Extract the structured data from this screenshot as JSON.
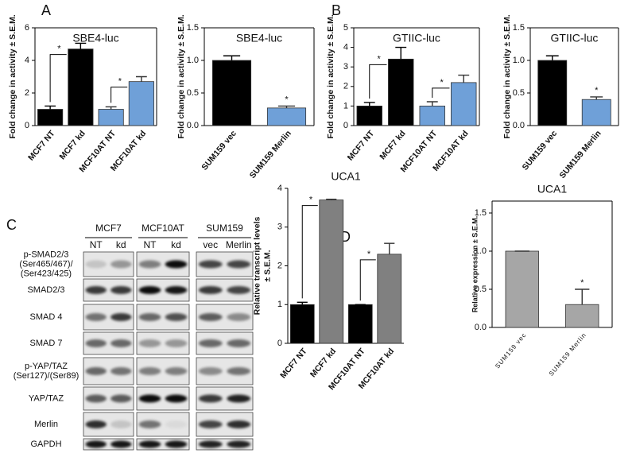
{
  "panel_labels": [
    "A",
    "B",
    "C",
    "D"
  ],
  "chart_data": [
    {
      "type": "bar",
      "title": "SBE4-luc",
      "y_label": [
        "Fold change in activity ± S.E.M."
      ],
      "categories": [
        "MCF7 NT",
        "MCF7 kd",
        "MCF10AT NT",
        "MCF10AT kd"
      ],
      "values": [
        1.0,
        4.7,
        1.0,
        2.7
      ],
      "errors": [
        0.2,
        0.35,
        0.15,
        0.3
      ],
      "colors": [
        "#000000",
        "#000000",
        "#6fa0d8",
        "#6fa0d8"
      ],
      "ylim": [
        0,
        6
      ],
      "yticks": [
        0,
        2,
        4,
        6
      ],
      "significance": [
        "*",
        "*"
      ]
    },
    {
      "type": "bar",
      "title": "SBE4-luc",
      "y_label": [
        "Fold change in activity ± S.E.M."
      ],
      "categories": [
        "SUM159 vec",
        "SUM159 Merlin"
      ],
      "values": [
        1.0,
        0.27
      ],
      "errors": [
        0.07,
        0.03
      ],
      "colors": [
        "#000000",
        "#6fa0d8"
      ],
      "ylim": [
        0,
        1.5
      ],
      "yticks": [
        {
          "value": 0,
          "label": "0.0"
        },
        {
          "value": 0.5,
          "label": "0.5"
        },
        {
          "value": 1,
          "label": "1.0"
        },
        {
          "value": 1.5,
          "label": "1.5"
        }
      ],
      "significance": [
        "*"
      ]
    },
    {
      "type": "bar",
      "title": "GTIIC-luc",
      "y_label": [
        "Fold change in activity ± S.E.M."
      ],
      "categories": [
        "MCF7 NT",
        "MCF7 kd",
        "MCF10AT NT",
        "MCF10AT kd"
      ],
      "values": [
        1.0,
        3.4,
        1.0,
        2.2
      ],
      "errors": [
        0.18,
        0.6,
        0.22,
        0.38
      ],
      "colors": [
        "#000000",
        "#000000",
        "#6fa0d8",
        "#6fa0d8"
      ],
      "ylim": [
        0,
        5
      ],
      "yticks": [
        0,
        1,
        2,
        3,
        4,
        5
      ],
      "significance": [
        "*",
        "*"
      ]
    },
    {
      "type": "bar",
      "title": "GTIIC-luc",
      "y_label": [
        "Fold change in activity ± S.E.M."
      ],
      "categories": [
        "SUM159 vec",
        "SUM159 Merlin"
      ],
      "values": [
        1.0,
        0.4
      ],
      "errors": [
        0.07,
        0.04
      ],
      "colors": [
        "#000000",
        "#6fa0d8"
      ],
      "ylim": [
        0,
        1.5
      ],
      "yticks": [
        {
          "value": 0,
          "label": "0.0"
        },
        {
          "value": 0.5,
          "label": "0.5"
        },
        {
          "value": 1,
          "label": "1.0"
        },
        {
          "value": 1.5,
          "label": "1.5"
        }
      ],
      "significance": [
        "*"
      ]
    },
    {
      "type": "bar",
      "title": "UCA1",
      "y_label": [
        "Relative transcript levels",
        "± S.E.M."
      ],
      "categories": [
        "MCF7 NT",
        "MCF7 kd",
        "MCF10AT NT",
        "MCF10AT kd"
      ],
      "values": [
        1.0,
        3.7,
        1.0,
        2.3
      ],
      "errors": [
        0.06,
        0.02,
        0,
        0.28
      ],
      "colors": [
        "#000000",
        "#808080",
        "#000000",
        "#808080"
      ],
      "ylim": [
        0,
        4
      ],
      "yticks": [
        0,
        1,
        2,
        3,
        4
      ],
      "significance": [
        "*",
        "*"
      ]
    },
    {
      "type": "bar",
      "title": "UCA1",
      "y_label": [
        "Relative expression ± S.E.M."
      ],
      "categories": [
        "SUM159 vec",
        "SUM159 Merlin"
      ],
      "values": [
        1.0,
        0.3
      ],
      "errors": [
        0,
        0.2
      ],
      "colors": [
        "#a6a6a6",
        "#a6a6a6"
      ],
      "ylim": [
        0,
        1.5
      ],
      "yticks": [
        {
          "value": 0,
          "label": "0.0"
        },
        {
          "value": 0.5,
          "label": "0.5"
        },
        {
          "value": 1,
          "label": "1.0"
        },
        {
          "value": 1.5,
          "label": "1.5"
        }
      ],
      "significance": [
        "*"
      ]
    }
  ],
  "blot": {
    "groups": [
      {
        "name": "MCF7",
        "lanes": [
          "NT",
          "kd"
        ]
      },
      {
        "name": "MCF10AT",
        "lanes": [
          "NT",
          "kd"
        ]
      },
      {
        "name": "SUM159",
        "lanes": [
          "vec",
          "Merlin"
        ]
      }
    ],
    "rows": [
      [
        "p-SMAD2/3",
        "(Ser465/467)/",
        "(Ser423/425)"
      ],
      [
        "SMAD2/3"
      ],
      [
        "SMAD 4"
      ],
      [
        "SMAD 7"
      ],
      [
        "p-YAP/TAZ",
        "(Ser127)/(Ser89)"
      ],
      [
        "YAP/TAZ"
      ],
      [
        "Merlin"
      ],
      [
        "GAPDH"
      ]
    ]
  }
}
